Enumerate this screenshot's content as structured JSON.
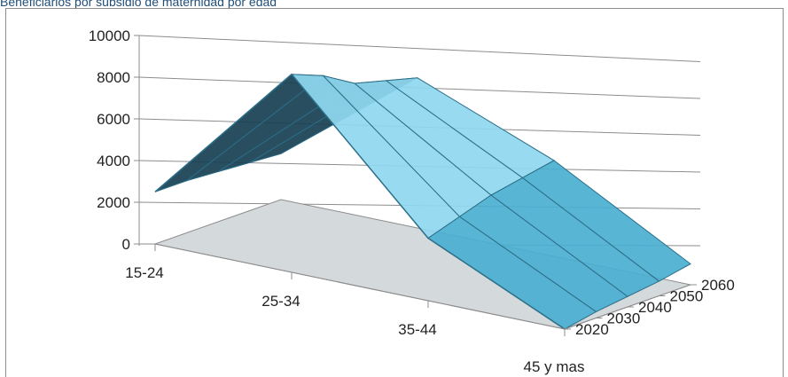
{
  "chart_data": {
    "type": "surface",
    "title": "Beneficiarios por subsidio de maternidad por edad",
    "xlabel": "",
    "ylabel": "",
    "zlabel": "",
    "categories": [
      "15-24",
      "25-34",
      "35-44",
      "45 y mas"
    ],
    "series_axis": [
      "2020",
      "2030",
      "2040",
      "2050",
      "2060"
    ],
    "z_ticks": [
      "0",
      "2000",
      "4000",
      "6000",
      "8000",
      "10000"
    ],
    "zlim": [
      0,
      10000
    ],
    "series": [
      {
        "name": "2020",
        "values": [
          2500,
          9500,
          3000,
          0
        ]
      },
      {
        "name": "2030",
        "values": [
          2500,
          8900,
          3500,
          300
        ]
      },
      {
        "name": "2040",
        "values": [
          2400,
          8000,
          4000,
          500
        ]
      },
      {
        "name": "2050",
        "values": [
          2300,
          7600,
          4300,
          700
        ]
      },
      {
        "name": "2060",
        "values": [
          2200,
          7200,
          4600,
          1000
        ]
      }
    ],
    "grid": true,
    "colors": {
      "surface_dark": "#163f52",
      "surface_light": "#8fd8f0",
      "surface_mid": "#4aafd0",
      "floor": "#d4d9dc",
      "grid_line": "#8c8c8c",
      "mesh_line": "#2c6f88"
    }
  }
}
